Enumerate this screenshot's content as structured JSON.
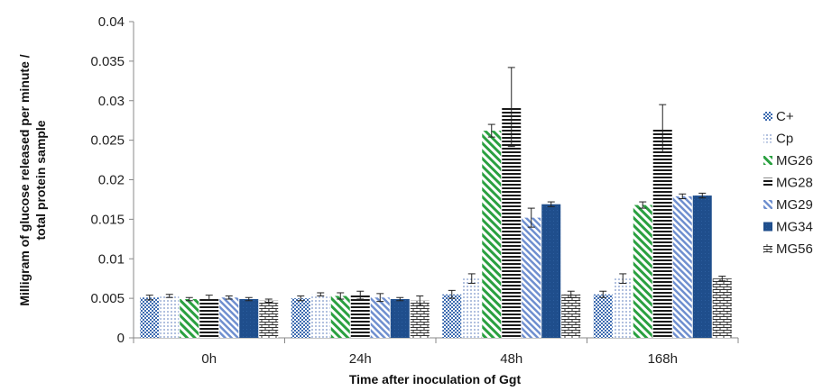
{
  "chart_data": {
    "type": "bar",
    "title": "",
    "xlabel": "Time after inoculation of Ggt",
    "ylabel_line1": "Milligram of glucose released per minute /",
    "ylabel_line2": "total protein sample",
    "ylim": [
      0,
      0.04
    ],
    "yticks": [
      "0",
      "0.005",
      "0.01",
      "0.015",
      "0.02",
      "0.025",
      "0.03",
      "0.035",
      "0.04"
    ],
    "categories": [
      "0h",
      "24h",
      "48h",
      "168h"
    ],
    "legend_position": "right",
    "series": [
      {
        "name": "C+",
        "color": "#3d6bb0",
        "pattern": "checker",
        "values": [
          0.0051,
          0.005,
          0.0055,
          0.0055
        ],
        "errors": [
          0.0003,
          0.0003,
          0.0005,
          0.0004
        ]
      },
      {
        "name": "Cp",
        "color": "#7b95c8",
        "pattern": "dots",
        "values": [
          0.0053,
          0.0055,
          0.0075,
          0.0075
        ],
        "errors": [
          0.0002,
          0.0002,
          0.0006,
          0.0006
        ]
      },
      {
        "name": "MG26",
        "color": "#2aa040",
        "pattern": "diag",
        "values": [
          0.0049,
          0.0053,
          0.0262,
          0.0168
        ],
        "errors": [
          0.0002,
          0.0004,
          0.0008,
          0.0004
        ]
      },
      {
        "name": "MG28",
        "color": "#1a1a1a",
        "pattern": "hlines",
        "values": [
          0.0051,
          0.0054,
          0.0292,
          0.0265
        ],
        "errors": [
          0.0003,
          0.0005,
          0.005,
          0.003
        ]
      },
      {
        "name": "MG29",
        "color": "#6f8fcf",
        "pattern": "diag2",
        "values": [
          0.0051,
          0.0051,
          0.0152,
          0.0179
        ],
        "errors": [
          0.0002,
          0.0005,
          0.0012,
          0.0003
        ]
      },
      {
        "name": "MG34",
        "color": "#1f4e8c",
        "pattern": "solid",
        "values": [
          0.0049,
          0.0049,
          0.0169,
          0.018
        ],
        "errors": [
          0.0002,
          0.0002,
          0.0003,
          0.0003
        ]
      },
      {
        "name": "MG56",
        "color": "#333333",
        "pattern": "brick",
        "values": [
          0.0047,
          0.0047,
          0.0055,
          0.0075
        ],
        "errors": [
          0.0002,
          0.0006,
          0.0004,
          0.0003
        ]
      }
    ]
  }
}
